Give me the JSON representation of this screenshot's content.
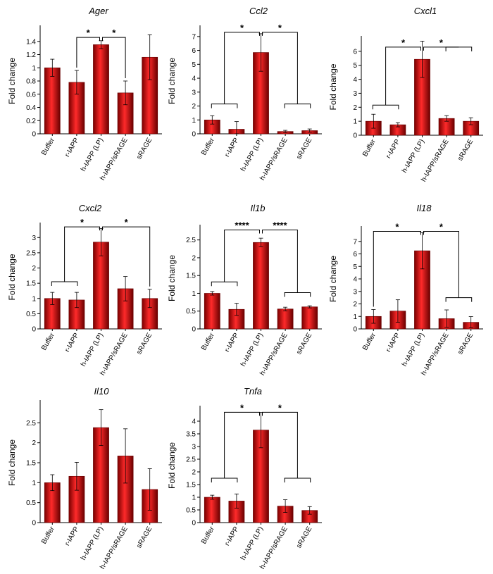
{
  "colors": {
    "bar": "#c00000",
    "bar_dark": "#6a0000",
    "bar_light": "#ff3a3a",
    "axis": "#000000"
  },
  "chart_data": [
    {
      "type": "bar",
      "title": "Ager",
      "ylabel": "Fold change",
      "categories": [
        "Buffer",
        "r-IAPP",
        "h-IAPP (LP)",
        "h-IAPP/sRAGE",
        "sRAGE"
      ],
      "values": [
        1.0,
        0.78,
        1.35,
        0.62,
        1.16
      ],
      "errors": [
        0.13,
        0.18,
        0.06,
        0.18,
        0.34
      ],
      "ylim": [
        0,
        1.6
      ],
      "yticks": [
        "0",
        "0.2",
        "0.4",
        "0.6",
        "0.8",
        "1",
        "1.2",
        "1.4"
      ],
      "ytick_values": [
        0,
        0.2,
        0.4,
        0.6,
        0.8,
        1.0,
        1.2,
        1.4
      ],
      "significance": [
        {
          "from": [
            1
          ],
          "to": 2,
          "label": "*",
          "y": 1.46,
          "toTop": 1.46
        },
        {
          "from": [
            3
          ],
          "to": 2,
          "label": "*",
          "y": 1.46,
          "toTop": 1.46
        }
      ]
    },
    {
      "type": "bar",
      "title": "Ccl2",
      "ylabel": "Fold change",
      "categories": [
        "Buffer",
        "r-IAPP",
        "h-IAPP (LP)",
        "h-IAPP/sRAGE",
        "sRAGE"
      ],
      "values": [
        1.0,
        0.33,
        5.85,
        0.17,
        0.23
      ],
      "errors": [
        0.3,
        0.55,
        1.35,
        0.08,
        0.12
      ],
      "ylim": [
        0,
        7.6
      ],
      "yticks": [
        "0",
        "1",
        "2",
        "3",
        "4",
        "5",
        "6",
        "7"
      ],
      "ytick_values": [
        0,
        1,
        2,
        3,
        4,
        5,
        6,
        7
      ],
      "significance": [
        {
          "from": [
            0,
            1
          ],
          "to": 2,
          "label": "*",
          "y": 2.15,
          "toTop": 7.3
        },
        {
          "from": [
            3,
            4
          ],
          "to": 2,
          "label": "*",
          "y": 2.15,
          "toTop": 7.3
        }
      ]
    },
    {
      "type": "bar",
      "title": "Cxcl1",
      "ylabel": "Fold change",
      "categories": [
        "Buffer",
        "r-IAPP",
        "h-IAPP (LP)",
        "h-IAPP/sRAGE",
        "sRAGE"
      ],
      "values": [
        1.0,
        0.75,
        5.43,
        1.2,
        1.0
      ],
      "errors": [
        0.5,
        0.15,
        1.3,
        0.2,
        0.25
      ],
      "ylim": [
        0,
        6.9
      ],
      "yticks": [
        "0",
        "1",
        "2",
        "3",
        "4",
        "5",
        "6"
      ],
      "ytick_values": [
        0,
        1,
        2,
        3,
        4,
        5,
        6
      ],
      "significance": [
        {
          "from": [
            0,
            1
          ],
          "to": 2,
          "label": "*",
          "y": 2.15,
          "toTop": 6.3
        },
        {
          "from": [
            3,
            4
          ],
          "to": 2,
          "label": "*",
          "y": 6.3,
          "toTop": 6.3,
          "right": true
        }
      ]
    },
    {
      "type": "bar",
      "title": "Cxcl2",
      "ylabel": "Fold change",
      "categories": [
        "Buffer",
        "r-IAPP",
        "h-IAPP (LP)",
        "h-IAPP/sRAGE",
        "sRAGE"
      ],
      "values": [
        1.0,
        0.95,
        2.85,
        1.32,
        1.0
      ],
      "errors": [
        0.2,
        0.25,
        0.45,
        0.4,
        0.3
      ],
      "ylim": [
        0,
        3.4
      ],
      "yticks": [
        "0",
        "0.5",
        "1",
        "1.5",
        "2",
        "2.5",
        "3"
      ],
      "ytick_values": [
        0,
        0.5,
        1.0,
        1.5,
        2.0,
        2.5,
        3.0
      ],
      "significance": [
        {
          "from": [
            0,
            1
          ],
          "to": 2,
          "label": "*",
          "y": 1.55,
          "toTop": 3.35
        },
        {
          "from": [
            4
          ],
          "to": 2,
          "label": "*",
          "y": 3.35,
          "toTop": 3.35
        }
      ]
    },
    {
      "type": "bar",
      "title": "Il1b",
      "ylabel": "Fold change",
      "categories": [
        "Buffer",
        "r-IAPP",
        "h-IAPP (LP)",
        "h-IAPP/sRAGE",
        "sRAGE"
      ],
      "values": [
        1.0,
        0.55,
        2.43,
        0.56,
        0.62
      ],
      "errors": [
        0.05,
        0.17,
        0.12,
        0.05,
        0.03
      ],
      "ylim": [
        0,
        2.85
      ],
      "yticks": [
        "0",
        "0.5",
        "1",
        "1.5",
        "2",
        "2.5"
      ],
      "ytick_values": [
        0,
        0.5,
        1.0,
        1.5,
        2.0,
        2.5
      ],
      "significance": [
        {
          "from": [
            0,
            1
          ],
          "to": 2,
          "label": "****",
          "y": 1.32,
          "toTop": 2.78
        },
        {
          "from": [
            3,
            4
          ],
          "to": 2,
          "label": "****",
          "y": 1.02,
          "toTop": 2.78
        }
      ]
    },
    {
      "type": "bar",
      "title": "Il18",
      "ylabel": "Fold change",
      "categories": [
        "Buffer",
        "r-IAPP",
        "h-IAPP (LP)",
        "h-IAPP/sRAGE",
        "sRAGE"
      ],
      "values": [
        1.0,
        1.43,
        6.25,
        0.82,
        0.53
      ],
      "errors": [
        0.55,
        0.9,
        1.45,
        0.7,
        0.45
      ],
      "ylim": [
        0,
        8.0
      ],
      "yticks": [
        "0",
        "1",
        "2",
        "3",
        "4",
        "5",
        "6",
        "7"
      ],
      "ytick_values": [
        0,
        1,
        2,
        3,
        4,
        5,
        6,
        7
      ],
      "significance": [
        {
          "from": [
            0
          ],
          "to": 2,
          "label": "*",
          "y": 7.8,
          "toTop": 7.8
        },
        {
          "from": [
            3,
            4
          ],
          "to": 2,
          "label": "*",
          "y": 2.5,
          "toTop": 7.8
        }
      ]
    },
    {
      "type": "bar",
      "title": "Il10",
      "ylabel": "Fold change",
      "categories": [
        "Buffer",
        "r-IAPP",
        "h-IAPP (LP)",
        "h-IAPP/sRAGE",
        "sRAGE"
      ],
      "values": [
        1.0,
        1.16,
        2.38,
        1.67,
        0.83
      ],
      "errors": [
        0.2,
        0.35,
        0.45,
        0.68,
        0.52
      ],
      "ylim": [
        0,
        3.0
      ],
      "yticks": [
        "0",
        "0.5",
        "1",
        "1.5",
        "2",
        "2.5"
      ],
      "ytick_values": [
        0,
        0.5,
        1.0,
        1.5,
        2.0,
        2.5
      ],
      "significance": []
    },
    {
      "type": "bar",
      "title": "Tnfa",
      "ylabel": "Fold change",
      "categories": [
        "Buffer",
        "r-IAPP",
        "h-IAPP (LP)",
        "h-IAPP/sRAGE",
        "sRAGE"
      ],
      "values": [
        1.0,
        0.85,
        3.65,
        0.65,
        0.48
      ],
      "errors": [
        0.08,
        0.28,
        0.7,
        0.25,
        0.15
      ],
      "ylim": [
        0,
        4.5
      ],
      "yticks": [
        "0",
        "0.5",
        "1",
        "1.5",
        "2",
        "2.5",
        "3",
        "3.5",
        "4"
      ],
      "ytick_values": [
        0,
        0.5,
        1.0,
        1.5,
        2.0,
        2.5,
        3.0,
        3.5,
        4.0
      ],
      "significance": [
        {
          "from": [
            0,
            1
          ],
          "to": 2,
          "label": "*",
          "y": 1.75,
          "toTop": 4.35
        },
        {
          "from": [
            3,
            4
          ],
          "to": 2,
          "label": "*",
          "y": 1.75,
          "toTop": 4.35
        }
      ]
    }
  ]
}
